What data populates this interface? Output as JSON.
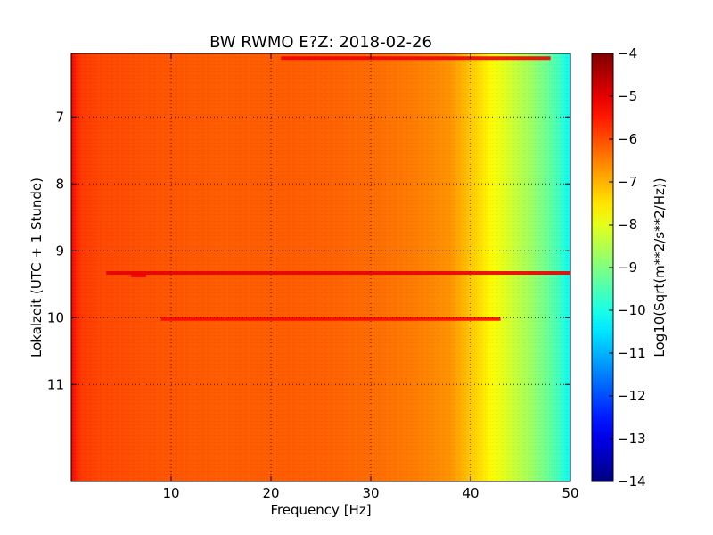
{
  "chart_data": {
    "type": "heatmap",
    "title": "BW RWMO E?Z: 2018-02-26",
    "xlabel": "Frequency [Hz]",
    "ylabel": "Lokalzeit (UTC + 1 Stunde)",
    "xlim": [
      0,
      50
    ],
    "ylim": [
      12.45,
      6.05
    ],
    "y_inverted": true,
    "x_ticks": [
      10,
      20,
      30,
      40,
      50
    ],
    "y_ticks": [
      7,
      8,
      9,
      10,
      11
    ],
    "grid": true,
    "colormap": "jet",
    "colorbar": {
      "label": "Log10(Sqrt(m**2/s**2/Hz))",
      "range": [
        -14,
        -4
      ],
      "ticks": [
        -4,
        -5,
        -6,
        -7,
        -8,
        -9,
        -10,
        -11,
        -12,
        -13,
        -14
      ]
    },
    "spectrum_profile": {
      "frequency_hz": [
        0,
        0.5,
        1,
        3,
        8,
        15,
        22,
        26,
        30,
        34,
        36,
        38,
        39,
        40,
        41,
        42,
        43,
        44,
        45,
        46,
        47,
        48,
        49,
        50
      ],
      "log10_amplitude": [
        -5.2,
        -5.6,
        -5.8,
        -5.95,
        -6.05,
        -6.15,
        -6.15,
        -6.2,
        -6.3,
        -6.45,
        -6.55,
        -6.7,
        -6.95,
        -7.2,
        -7.45,
        -7.7,
        -7.95,
        -8.2,
        -8.45,
        -8.7,
        -9.0,
        -9.3,
        -9.7,
        -10.3
      ]
    },
    "bands": [
      {
        "time": 9.33,
        "f_start": 3.5,
        "f_end": 50,
        "log10_amplitude": -5.0
      },
      {
        "time": 10.02,
        "f_start": 9,
        "f_end": 43,
        "log10_amplitude": -5.3
      },
      {
        "time": 6.12,
        "f_start": 21,
        "f_end": 48,
        "log10_amplitude": -5.1
      },
      {
        "time": 9.37,
        "f_start": 6,
        "f_end": 7.5,
        "log10_amplitude": -5.1
      }
    ]
  }
}
